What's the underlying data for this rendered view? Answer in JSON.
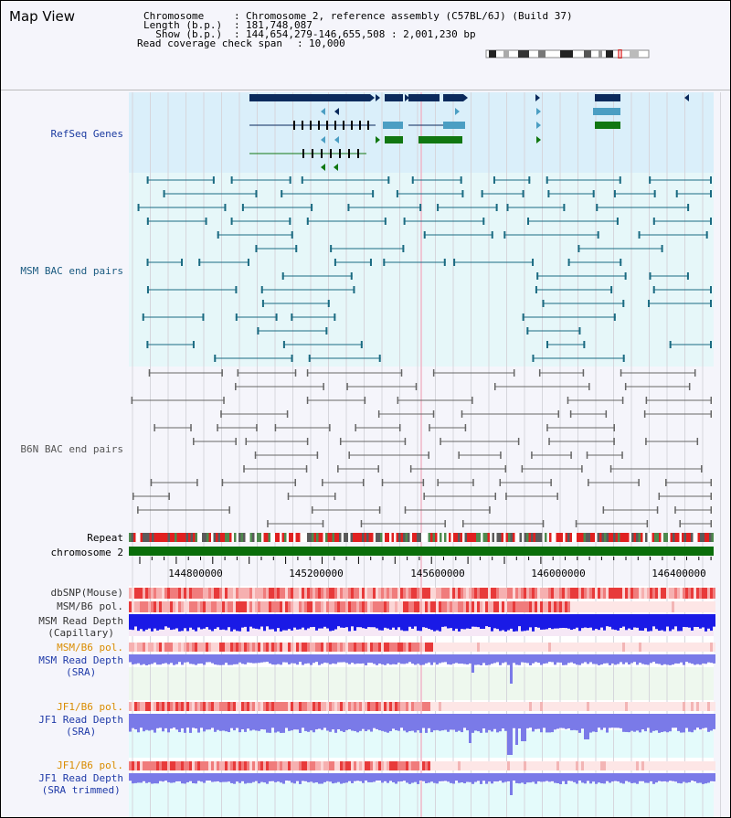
{
  "title": "Map View",
  "info": {
    "chromosome_key": "Chromosome",
    "chromosome_val": "Chromosome 2, reference assembly (C57BL/6J) (Build 37)",
    "length_key": "Length (b.p.)",
    "length_val": "181,748,087",
    "show_key": "  Show (b.p.)",
    "show_val": "144,654,279-146,655,508 : 2,001,230 bp",
    "span_key": "Read coverage check span",
    "span_val": "10,000"
  },
  "tracks": {
    "refseq": "RefSeq Genes",
    "msm_bac": "MSM BAC end pairs",
    "b6n_bac": "B6N BAC end pairs",
    "repeat": "Repeat",
    "chromosome": "chromosome 2",
    "dbsnp": "dbSNP(Mouse)",
    "msm_b6_pol": "MSM/B6 pol.",
    "msm_depth_cap_1": "MSM Read Depth",
    "msm_depth_cap_2": "(Capillary)",
    "msm_b6_pol2": "MSM/B6 pol.",
    "msm_depth_sra_1": "MSM Read Depth",
    "msm_depth_sra_2": "(SRA)",
    "jf1_b6_pol": "JF1/B6 pol.",
    "jf1_depth_sra_1": "JF1 Read Depth",
    "jf1_depth_sra_2": "(SRA)",
    "jf1_b6_pol2": "JF1/B6 pol.",
    "jf1_depth_trim_1": "JF1 Read Depth",
    "jf1_depth_trim_2": "(SRA trimmed)"
  },
  "axis": {
    "ticks": [
      "144800000",
      "145200000",
      "145600000",
      "146000000",
      "146400000"
    ]
  },
  "colors": {
    "refseq_bg": "#daeffa",
    "gene_dark": "#0b2a5c",
    "gene_mid": "#4b9ec3",
    "gene_green": "#117711",
    "msm_line": "#1b6b82",
    "b6n_line": "#666666",
    "chrom_green": "#0a6e0a",
    "depth_blue": "#1a1ae6",
    "depth_light": "#7a7ae8",
    "label_blue": "#1f3aa8",
    "label_orange": "#d98c00",
    "refseq_label": "#1a3aa0",
    "msm_label": "#1a5a80"
  }
}
